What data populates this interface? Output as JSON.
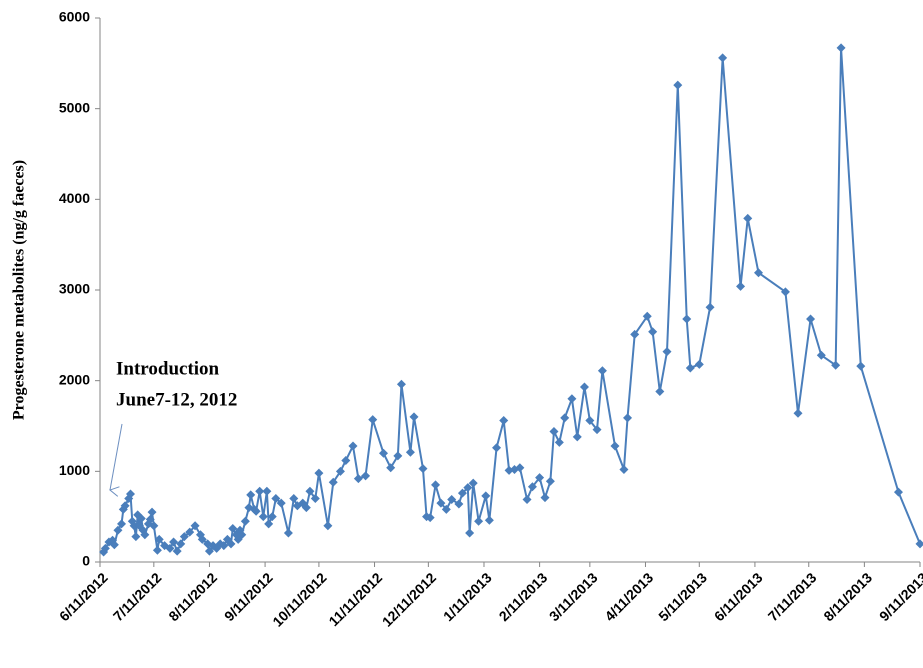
{
  "chart_data": {
    "type": "line",
    "y_label": "Progesterone metabolites (ng/g faeces)",
    "annotation": [
      "Introduction",
      "June7-12, 2012"
    ],
    "color": "#4a7ebb",
    "marker": "diamond",
    "grid": false,
    "xlim": [
      "2012-06-11",
      "2013-09-11"
    ],
    "xticks": [
      {
        "value": "2012-06-11",
        "label": "6/11/2012"
      },
      {
        "value": "2012-07-11",
        "label": "7/11/2012"
      },
      {
        "value": "2012-08-11",
        "label": "8/11/2012"
      },
      {
        "value": "2012-09-11",
        "label": "9/11/2012"
      },
      {
        "value": "2012-10-11",
        "label": "10/11/2012"
      },
      {
        "value": "2012-11-11",
        "label": "11/11/2012"
      },
      {
        "value": "2012-12-11",
        "label": "12/11/2012"
      },
      {
        "value": "2013-01-11",
        "label": "1/11/2013"
      },
      {
        "value": "2013-02-11",
        "label": "2/11/2013"
      },
      {
        "value": "2013-03-11",
        "label": "3/11/2013"
      },
      {
        "value": "2013-04-11",
        "label": "4/11/2013"
      },
      {
        "value": "2013-05-11",
        "label": "5/11/2013"
      },
      {
        "value": "2013-06-11",
        "label": "6/11/2013"
      },
      {
        "value": "2013-07-11",
        "label": "7/11/2013"
      },
      {
        "value": "2013-08-11",
        "label": "8/11/2013"
      },
      {
        "value": "2013-09-11",
        "label": "9/11/2013"
      }
    ],
    "ylim": [
      0,
      6000
    ],
    "yticks": [
      0,
      1000,
      2000,
      3000,
      4000,
      5000,
      6000
    ],
    "x": [
      "2012-06-13",
      "2012-06-14",
      "2012-06-16",
      "2012-06-18",
      "2012-06-19",
      "2012-06-21",
      "2012-06-23",
      "2012-06-24",
      "2012-06-25",
      "2012-06-27",
      "2012-06-28",
      "2012-06-29",
      "2012-06-30",
      "2012-07-01",
      "2012-07-02",
      "2012-07-03",
      "2012-07-04",
      "2012-07-05",
      "2012-07-06",
      "2012-07-08",
      "2012-07-09",
      "2012-07-10",
      "2012-07-11",
      "2012-07-13",
      "2012-07-14",
      "2012-07-17",
      "2012-07-20",
      "2012-07-22",
      "2012-07-24",
      "2012-07-26",
      "2012-07-28",
      "2012-07-31",
      "2012-08-03",
      "2012-08-06",
      "2012-08-07",
      "2012-08-10",
      "2012-08-11",
      "2012-08-13",
      "2012-08-15",
      "2012-08-17",
      "2012-08-19",
      "2012-08-21",
      "2012-08-23",
      "2012-08-24",
      "2012-08-26",
      "2012-08-27",
      "2012-08-28",
      "2012-08-29",
      "2012-08-31",
      "2012-09-02",
      "2012-09-03",
      "2012-09-05",
      "2012-09-06",
      "2012-09-08",
      "2012-09-10",
      "2012-09-12",
      "2012-09-13",
      "2012-09-15",
      "2012-09-17",
      "2012-09-20",
      "2012-09-24",
      "2012-09-27",
      "2012-09-29",
      "2012-10-02",
      "2012-10-04",
      "2012-10-06",
      "2012-10-09",
      "2012-10-11",
      "2012-10-16",
      "2012-10-19",
      "2012-10-23",
      "2012-10-26",
      "2012-10-30",
      "2012-11-02",
      "2012-11-06",
      "2012-11-10",
      "2012-11-16",
      "2012-11-20",
      "2012-11-24",
      "2012-11-26",
      "2012-12-01",
      "2012-12-03",
      "2012-12-08",
      "2012-12-10",
      "2012-12-12",
      "2012-12-15",
      "2012-12-18",
      "2012-12-21",
      "2012-12-24",
      "2012-12-28",
      "2012-12-30",
      "2013-01-02",
      "2013-01-03",
      "2013-01-05",
      "2013-01-08",
      "2013-01-12",
      "2013-01-14",
      "2013-01-18",
      "2013-01-22",
      "2013-01-25",
      "2013-01-28",
      "2013-01-31",
      "2013-02-04",
      "2013-02-07",
      "2013-02-11",
      "2013-02-14",
      "2013-02-17",
      "2013-02-19",
      "2013-02-22",
      "2013-02-25",
      "2013-03-01",
      "2013-03-04",
      "2013-03-08",
      "2013-03-11",
      "2013-03-15",
      "2013-03-18",
      "2013-03-25",
      "2013-03-30",
      "2013-04-01",
      "2013-04-05",
      "2013-04-12",
      "2013-04-15",
      "2013-04-19",
      "2013-04-23",
      "2013-04-29",
      "2013-05-04",
      "2013-05-06",
      "2013-05-11",
      "2013-05-17",
      "2013-05-24",
      "2013-06-03",
      "2013-06-07",
      "2013-06-13",
      "2013-06-28",
      "2013-07-05",
      "2013-07-12",
      "2013-07-18",
      "2013-07-26",
      "2013-07-29",
      "2013-08-09",
      "2013-08-30",
      "2013-09-11"
    ],
    "values": [
      110,
      150,
      220,
      240,
      190,
      350,
      420,
      580,
      620,
      700,
      750,
      450,
      400,
      280,
      520,
      400,
      480,
      350,
      300,
      420,
      470,
      550,
      400,
      130,
      250,
      180,
      150,
      220,
      120,
      200,
      280,
      330,
      400,
      300,
      250,
      200,
      120,
      180,
      150,
      200,
      180,
      250,
      200,
      370,
      300,
      250,
      350,
      300,
      450,
      600,
      740,
      580,
      560,
      780,
      500,
      780,
      420,
      500,
      700,
      650,
      320,
      700,
      620,
      650,
      600,
      780,
      700,
      980,
      400,
      880,
      1000,
      1120,
      1280,
      920,
      950,
      1570,
      1200,
      1040,
      1170,
      1960,
      1210,
      1600,
      1030,
      500,
      490,
      850,
      650,
      580,
      690,
      640,
      760,
      820,
      320,
      870,
      450,
      730,
      460,
      1260,
      1560,
      1010,
      1020,
      1040,
      690,
      830,
      930,
      710,
      890,
      1440,
      1320,
      1590,
      1800,
      1380,
      1930,
      1560,
      1460,
      2110,
      1280,
      1020,
      1590,
      2510,
      2710,
      2540,
      1880,
      2320,
      5260,
      2680,
      2140,
      2180,
      2810,
      5560,
      3040,
      3790,
      3190,
      2980,
      1640,
      2680,
      2280,
      2170,
      5670,
      2160,
      770,
      200
    ]
  }
}
